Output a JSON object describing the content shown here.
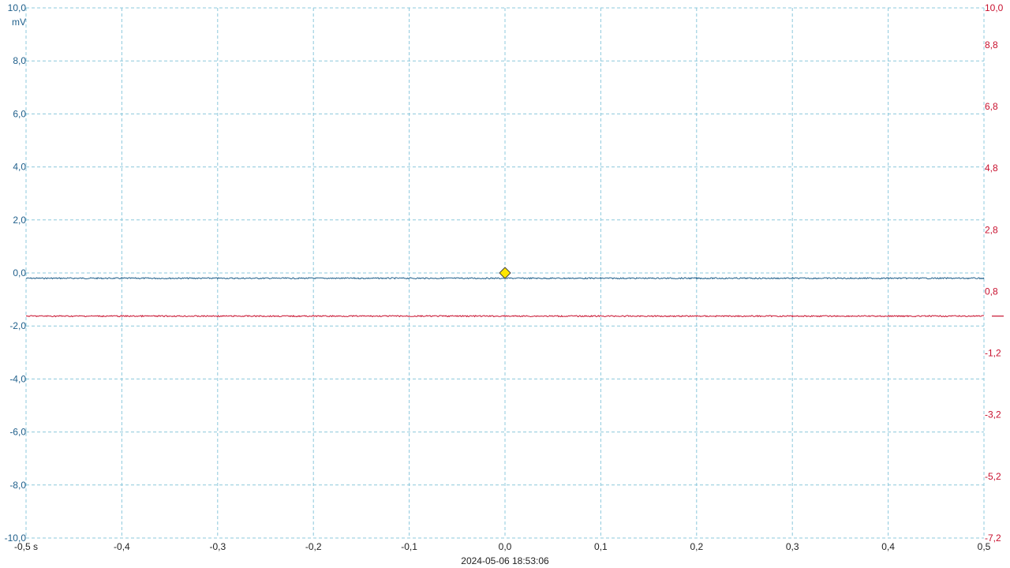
{
  "chart_data": {
    "type": "line",
    "x_axis": {
      "unit": "s",
      "range": [
        -0.5,
        0.5
      ],
      "ticks": [
        -0.5,
        -0.4,
        -0.3,
        -0.2,
        -0.1,
        0.0,
        0.1,
        0.2,
        0.3,
        0.4,
        0.5
      ],
      "tick_labels": [
        "-0,5 s",
        "-0,4",
        "-0,3",
        "-0,2",
        "-0,1",
        "0,0",
        "0,1",
        "0,2",
        "0,3",
        "0,4",
        "0,5"
      ]
    },
    "y_axis_left": {
      "unit": "mV",
      "range": [
        -10.0,
        10.0
      ],
      "ticks": [
        10,
        8,
        6,
        4,
        2,
        0,
        -2,
        -4,
        -6,
        -8,
        -10
      ],
      "tick_labels": [
        "10,0",
        "8,0",
        "6,0",
        "4,0",
        "2,0",
        "0,0",
        "-2,0",
        "-4,0",
        "-6,0",
        "-8,0",
        "-10,0"
      ],
      "color": "#1f5f8b"
    },
    "y_axis_right": {
      "unit": "mV",
      "range": [
        -7.2,
        10.0
      ],
      "ticks": [
        10.0,
        8.8,
        6.8,
        4.8,
        2.8,
        0.8,
        -1.2,
        -3.2,
        -5.2,
        -7.2
      ],
      "tick_labels": [
        "10,0",
        "8,8",
        "6,8",
        "4,8",
        "2,8",
        "0,8",
        "-1,2",
        "-3,2",
        "-5,2",
        "-7,2"
      ],
      "color": "#c8102e"
    },
    "series": [
      {
        "axis": "left",
        "color": "#1f5f8b",
        "x": [
          -0.5,
          -0.4,
          -0.3,
          -0.2,
          -0.1,
          0.0,
          0.1,
          0.2,
          0.3,
          0.4,
          0.5
        ],
        "y": [
          -0.2,
          -0.2,
          -0.2,
          -0.2,
          -0.2,
          -0.2,
          -0.2,
          -0.2,
          -0.2,
          -0.2,
          -0.2
        ]
      },
      {
        "axis": "right",
        "color": "#c8102e",
        "x": [
          -0.5,
          -0.4,
          -0.3,
          -0.2,
          -0.1,
          0.0,
          0.1,
          0.2,
          0.3,
          0.4,
          0.5
        ],
        "y": [
          0.0,
          0.0,
          0.0,
          0.0,
          0.0,
          0.0,
          0.0,
          0.0,
          0.0,
          0.0,
          0.0
        ]
      }
    ],
    "trigger": {
      "x": 0.0,
      "y": 0.0,
      "axis": "left",
      "color": "#ffe600"
    },
    "grid": true,
    "grid_color": "#8cc8dc",
    "timestamp": "2024-05-06 18:53:06"
  }
}
